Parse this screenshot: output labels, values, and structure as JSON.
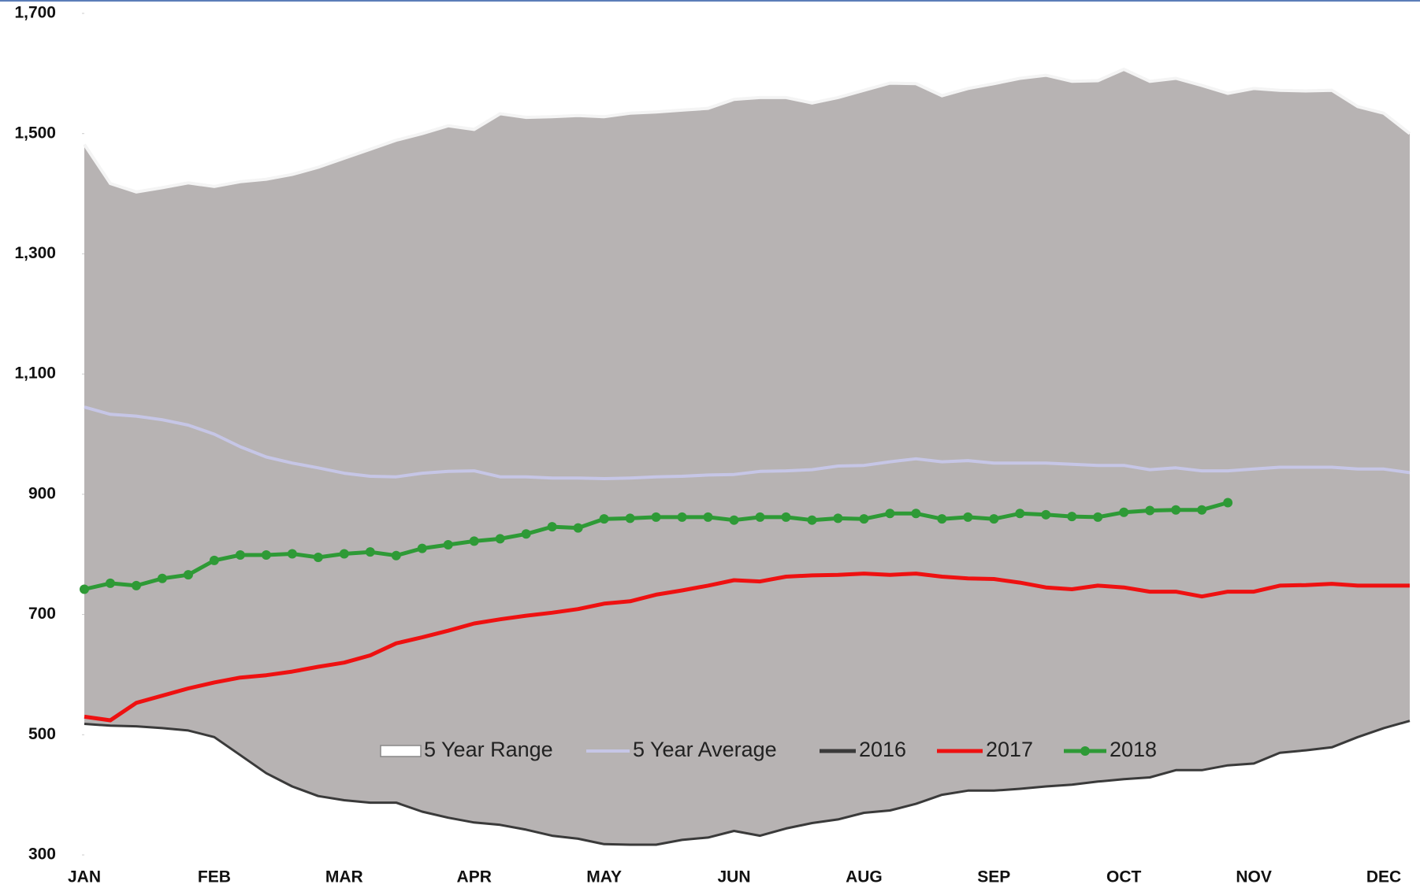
{
  "chart_data": {
    "type": "line",
    "categories": [
      "JAN",
      null,
      null,
      null,
      null,
      "FEB",
      null,
      null,
      null,
      null,
      "MAR",
      null,
      null,
      null,
      null,
      "APR",
      null,
      null,
      null,
      null,
      "MAY",
      null,
      null,
      null,
      null,
      "JUN",
      null,
      null,
      null,
      null,
      "AUG",
      null,
      null,
      null,
      null,
      "SEP",
      null,
      null,
      null,
      null,
      "OCT",
      null,
      null,
      null,
      null,
      "NOV",
      null,
      null,
      null,
      null,
      "DEC",
      null
    ],
    "ylim": [
      300,
      1700
    ],
    "yticks": [
      300,
      500,
      700,
      900,
      {
        "value": 1100,
        "label": "1,100"
      },
      {
        "value": 1300,
        "label": "1,300"
      },
      {
        "value": 1500,
        "label": "1,500"
      },
      {
        "value": 1700,
        "label": "1,700"
      }
    ],
    "series": [
      {
        "name": "5 Year Range",
        "color": "#b7b3b3",
        "values": [
          1482,
          1417,
          1403,
          1410,
          1418,
          1412,
          1420,
          1424,
          1432,
          1444,
          1459,
          1474,
          1489,
          1500,
          1513,
          1507,
          1533,
          1527,
          1528,
          1530,
          1528,
          1534,
          1536,
          1539,
          1542,
          1557,
          1560,
          1560,
          1551,
          1560,
          1572,
          1584,
          1583,
          1563,
          1575,
          1583,
          1592,
          1597,
          1587,
          1588,
          1607,
          1587,
          1592,
          1580,
          1567,
          1575,
          1572,
          1571,
          1572,
          1545,
          1534,
          1500
        ],
        "lower": [
          518,
          515,
          514,
          511,
          507,
          496,
          466,
          436,
          414,
          398,
          391,
          387,
          387,
          372,
          362,
          354,
          350,
          342,
          332,
          327,
          318,
          317,
          317,
          325,
          329,
          340,
          332,
          344,
          353,
          359,
          370,
          374,
          385,
          400,
          407,
          407,
          410,
          414,
          417,
          422,
          426,
          429,
          441,
          441,
          449,
          452,
          470,
          474,
          479,
          496,
          511,
          523
        ]
      },
      {
        "name": "5 Year Average",
        "color": "#c6c6e6",
        "values": [
          1045,
          1033,
          1030,
          1024,
          1015,
          1000,
          979,
          962,
          952,
          944,
          935,
          930,
          929,
          935,
          938,
          939,
          929,
          929,
          927,
          927,
          926,
          927,
          929,
          930,
          932,
          933,
          938,
          939,
          941,
          947,
          948,
          954,
          959,
          954,
          956,
          952,
          952,
          952,
          950,
          948,
          948,
          941,
          944,
          939,
          939,
          942,
          945,
          945,
          945,
          942,
          942,
          936
        ]
      },
      {
        "name": "2016",
        "color": "#3a3a3a",
        "values": [
          518,
          515,
          514,
          511,
          507,
          496,
          466,
          436,
          414,
          398,
          391,
          387,
          387,
          372,
          362,
          354,
          350,
          342,
          332,
          327,
          318,
          317,
          317,
          325,
          329,
          340,
          332,
          344,
          353,
          359,
          370,
          374,
          385,
          400,
          407,
          407,
          410,
          414,
          417,
          422,
          426,
          429,
          441,
          441,
          449,
          452,
          470,
          474,
          479,
          496,
          511,
          523
        ]
      },
      {
        "name": "2017",
        "color": "#ee1111",
        "values": [
          530,
          524,
          553,
          565,
          577,
          587,
          595,
          599,
          605,
          613,
          620,
          632,
          652,
          662,
          673,
          685,
          692,
          698,
          703,
          709,
          718,
          722,
          733,
          740,
          748,
          757,
          755,
          763,
          765,
          766,
          768,
          766,
          768,
          763,
          760,
          759,
          753,
          745,
          742,
          748,
          745,
          738,
          738,
          730,
          738,
          738,
          748,
          749,
          751,
          748,
          748,
          748
        ]
      },
      {
        "name": "2018",
        "color": "#2e9a36",
        "values": [
          742,
          752,
          748,
          760,
          766,
          790,
          799,
          799,
          801,
          795,
          801,
          804,
          798,
          810,
          816,
          822,
          826,
          834,
          846,
          844,
          859,
          860,
          862,
          862,
          862,
          857,
          862,
          862,
          857,
          860,
          859,
          868,
          868,
          859,
          862,
          859,
          868,
          866,
          863,
          862,
          870,
          873,
          874,
          874,
          886,
          null,
          null,
          null,
          null,
          null,
          null,
          null
        ]
      }
    ]
  }
}
